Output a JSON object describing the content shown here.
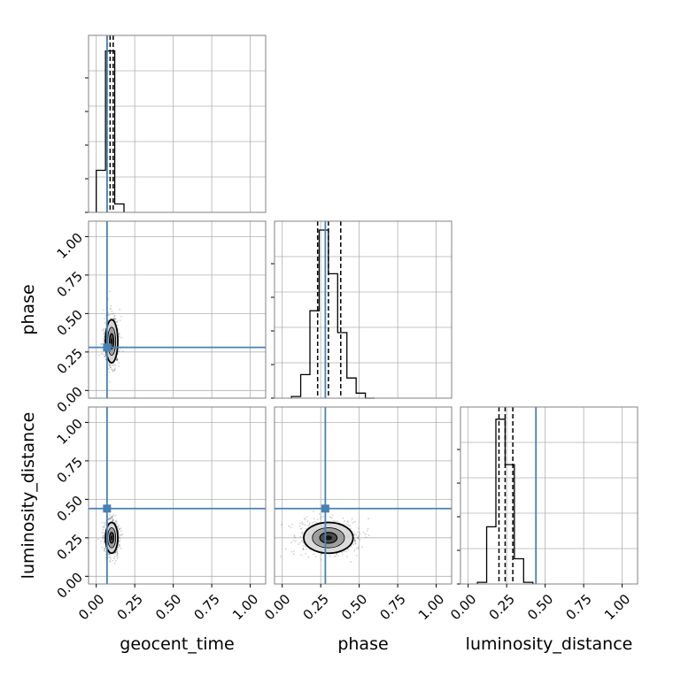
{
  "chart_data": {
    "type": "corner",
    "parameters": [
      "geocent_time",
      "phase",
      "luminosity_distance"
    ],
    "axis_range": [
      -0.05,
      1.1
    ],
    "tick_values": [
      0.0,
      0.25,
      0.5,
      0.75,
      1.0
    ],
    "tick_labels": [
      "0.00",
      "0.25",
      "0.50",
      "0.75",
      "1.00"
    ],
    "grid": true,
    "truths": {
      "geocent_time": 0.07,
      "phase": 0.28,
      "luminosity_distance": 0.44
    },
    "truth_color": "#4682b4",
    "histograms": {
      "geocent_time": {
        "bins": [
          [
            0.0,
            0.06
          ],
          [
            0.06,
            0.12
          ],
          [
            0.12,
            0.18
          ]
        ],
        "counts": [
          0.25,
          0.96,
          0.05
        ],
        "quantiles": [
          0.07,
          0.09,
          0.11
        ]
      },
      "phase": {
        "bins": [
          [
            0.06,
            0.12
          ],
          [
            0.12,
            0.18
          ],
          [
            0.18,
            0.24
          ],
          [
            0.24,
            0.3
          ],
          [
            0.3,
            0.36
          ],
          [
            0.36,
            0.42
          ],
          [
            0.42,
            0.48
          ],
          [
            0.48,
            0.54
          ],
          [
            0.54,
            0.6
          ]
        ],
        "counts": [
          0.01,
          0.14,
          0.52,
          1.0,
          0.74,
          0.39,
          0.12,
          0.03,
          0.0
        ],
        "quantiles": [
          0.23,
          0.3,
          0.38
        ]
      },
      "luminosity_distance": {
        "bins": [
          [
            0.06,
            0.12
          ],
          [
            0.12,
            0.18
          ],
          [
            0.18,
            0.24
          ],
          [
            0.24,
            0.3
          ],
          [
            0.3,
            0.36
          ],
          [
            0.36,
            0.42
          ]
        ],
        "counts": [
          0.01,
          0.34,
          0.98,
          0.71,
          0.15,
          0.01
        ],
        "quantiles": [
          0.2,
          0.24,
          0.29
        ]
      }
    },
    "pairs": [
      {
        "x": "geocent_time",
        "y": "phase",
        "mean": [
          0.1,
          0.32
        ],
        "sigma": [
          0.02,
          0.07
        ]
      },
      {
        "x": "geocent_time",
        "y": "luminosity_distance",
        "mean": [
          0.1,
          0.25
        ],
        "sigma": [
          0.02,
          0.05
        ]
      },
      {
        "x": "phase",
        "y": "luminosity_distance",
        "mean": [
          0.3,
          0.25
        ],
        "sigma": [
          0.08,
          0.05
        ]
      }
    ],
    "xlabels": [
      "geocent_time",
      "phase",
      "luminosity_distance"
    ],
    "ylabels": [
      "",
      "phase",
      "luminosity_distance"
    ]
  }
}
